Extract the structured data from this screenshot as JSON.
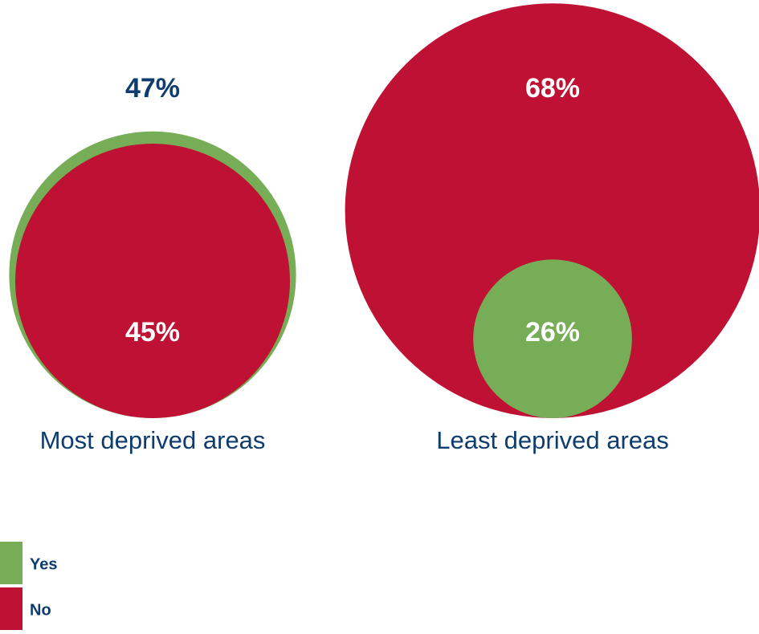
{
  "chart_data": {
    "type": "nested-bubble",
    "categories": [
      "Most deprived areas",
      "Least deprived areas"
    ],
    "series": [
      {
        "name": "Yes",
        "color": "#77ad57",
        "values": [
          47,
          26
        ],
        "value_labels": [
          "47%",
          "26%"
        ]
      },
      {
        "name": "No",
        "color": "#be1134",
        "values": [
          45,
          68
        ],
        "value_labels": [
          "45%",
          "68%"
        ]
      }
    ],
    "label_color": "#0e3c6e"
  }
}
